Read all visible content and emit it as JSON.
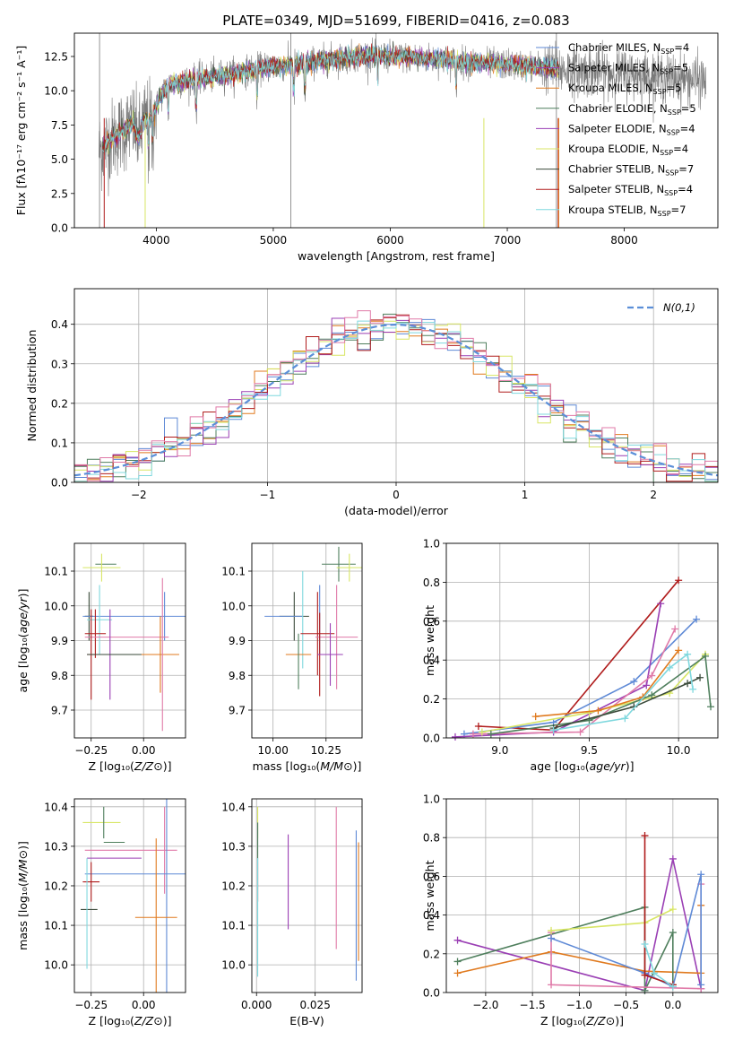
{
  "figure_title": "PLATE=0349, MJD=51699, FIBERID=0416, z=0.083",
  "colors": {
    "Chabrier MILES": "#5f8ad6",
    "Salpeter MILES": "#9a3fb4",
    "Kroupa MILES": "#e07a1f",
    "Chabrier ELODIE": "#4f7f5d",
    "Salpeter ELODIE": "#9a3fb4",
    "Kroupa ELODIE": "#d8e665",
    "Chabrier STELIB": "#3a4a3a",
    "Salpeter STELIB": "#b01c1c",
    "Kroupa STELIB": "#7fd8de",
    "pink": "#e07aa8",
    "gauss": "#5b8fd8",
    "grid": "#b0b0b0",
    "spectrum": "#7a7a7a"
  },
  "chart_data": [
    {
      "id": "spectrum",
      "type": "line",
      "title": "PLATE=0349, MJD=51699, FIBERID=0416, z=0.083",
      "xlabel": "wavelength [Angstrom, rest frame]",
      "ylabel": "Flux [f_λ 10^-17 erg cm^-2 s^-1 A^-1]",
      "xlim": [
        3300,
        8800
      ],
      "ylim": [
        0,
        14.2
      ],
      "xticks": [
        4000,
        5000,
        6000,
        7000,
        8000
      ],
      "yticks": [
        0.0,
        2.5,
        5.0,
        7.5,
        10.0,
        12.5
      ],
      "grid": false,
      "legend_position": "right",
      "continuum": {
        "x": [
          3510,
          3600,
          3700,
          3800,
          3850,
          3900,
          3950,
          4000,
          4050,
          4100,
          4200,
          4300,
          4400,
          4600,
          4800,
          5000,
          5200,
          5400,
          5600,
          5800,
          6000,
          6200,
          6400,
          6600,
          6800,
          7000,
          7200,
          7400,
          7500,
          7700,
          7900,
          8100,
          8300,
          8500,
          8700
        ],
        "y": [
          5.6,
          6.3,
          7.0,
          7.6,
          6.5,
          7.9,
          7.8,
          8.8,
          9.8,
          10.4,
          10.6,
          10.8,
          10.9,
          11.2,
          11.5,
          11.8,
          11.9,
          12.2,
          12.4,
          12.6,
          12.5,
          12.4,
          12.3,
          12.1,
          12.0,
          11.9,
          11.8,
          11.6,
          11.5,
          11.4,
          11.3,
          11.2,
          11.0,
          10.9,
          10.7
        ]
      },
      "series": [
        {
          "name": "Chabrier MILES, N_SSP=4",
          "color_key": "Chabrier MILES"
        },
        {
          "name": "Salpeter MILES, N_SSP=5",
          "color_key": "Salpeter MILES"
        },
        {
          "name": "Kroupa MILES, N_SSP=5",
          "color_key": "Kroupa MILES"
        },
        {
          "name": "Chabrier ELODIE, N_SSP=5",
          "color_key": "Chabrier ELODIE"
        },
        {
          "name": "Salpeter ELODIE, N_SSP=4",
          "color_key": "Salpeter ELODIE"
        },
        {
          "name": "Kroupa ELODIE, N_SSP=4",
          "color_key": "Kroupa ELODIE"
        },
        {
          "name": "Chabrier STELIB, N_SSP=7",
          "color_key": "Chabrier STELIB"
        },
        {
          "name": "Salpeter STELIB, N_SSP=4",
          "color_key": "Salpeter STELIB"
        },
        {
          "name": "Kroupa STELIB, N_SSP=7",
          "color_key": "Kroupa STELIB"
        }
      ]
    },
    {
      "id": "residuals",
      "type": "histogram",
      "xlabel": "(data-model)/error",
      "ylabel": "Normed distribution",
      "xlim": [
        -2.5,
        2.5
      ],
      "ylim": [
        0,
        0.49
      ],
      "xticks": [
        -2,
        -1,
        0,
        1,
        2
      ],
      "yticks": [
        0.0,
        0.1,
        0.2,
        0.3,
        0.4
      ],
      "grid": true,
      "bin_width": 0.1,
      "legend": "N(0,1)",
      "legend_position": "top-right",
      "series_colors": [
        "Chabrier MILES",
        "Kroupa MILES",
        "Chabrier ELODIE",
        "Salpeter ELODIE",
        "Kroupa ELODIE",
        "Salpeter STELIB",
        "Kroupa STELIB",
        "pink"
      ]
    },
    {
      "id": "age_vs_Z",
      "type": "errorbar",
      "xlabel": "Z [log10(Z/Z_sun)]",
      "ylabel": "age [log10(age/yr)]",
      "xlim": [
        -0.33,
        0.2
      ],
      "ylim": [
        9.62,
        10.18
      ],
      "xticks": [
        -0.25,
        0.0
      ],
      "yticks": [
        9.7,
        9.8,
        9.9,
        10.0,
        10.1
      ],
      "grid": true,
      "points": [
        {
          "x": -0.18,
          "xerr": 0.05,
          "y": 10.12,
          "yerr": 0,
          "c": "Chabrier ELODIE"
        },
        {
          "x": -0.2,
          "xerr": 0.09,
          "y": 10.11,
          "yerr": 0.04,
          "c": "Kroupa ELODIE"
        },
        {
          "x": -0.26,
          "xerr": 0.02,
          "y": 9.97,
          "yerr": 0.07,
          "c": "Chabrier STELIB"
        },
        {
          "x": 0.1,
          "xerr": 0.0,
          "y": 9.97,
          "yerr": 0.07,
          "c": "Chabrier MILES"
        },
        {
          "x": -0.03,
          "xerr": 0.26,
          "y": 9.97,
          "yerr": 0,
          "c": "Chabrier MILES"
        },
        {
          "x": -0.21,
          "xerr": 0.06,
          "y": 9.96,
          "yerr": 0.1,
          "c": "Kroupa STELIB"
        },
        {
          "x": -0.23,
          "xerr": 0.05,
          "y": 9.92,
          "yerr": 0.07,
          "c": "Salpeter STELIB"
        },
        {
          "x": -0.08,
          "xerr": 0.2,
          "y": 9.91,
          "yerr": 0,
          "c": "pink"
        },
        {
          "x": -0.25,
          "xerr": 0.02,
          "y": 9.86,
          "yerr": 0.13,
          "c": "Salpeter STELIB"
        },
        {
          "x": -0.16,
          "xerr": 0.11,
          "y": 9.86,
          "yerr": 0.13,
          "c": "Salpeter MILES"
        },
        {
          "x": -0.07,
          "xerr": 0.2,
          "y": 9.86,
          "yerr": 0,
          "c": "Chabrier STELIB"
        },
        {
          "x": 0.08,
          "xerr": 0.09,
          "y": 9.86,
          "yerr": 0.11,
          "c": "Kroupa MILES"
        },
        {
          "x": 0.09,
          "xerr": 0.0,
          "y": 9.86,
          "yerr": 0.22,
          "c": "pink"
        }
      ]
    },
    {
      "id": "age_vs_mass",
      "type": "errorbar",
      "xlabel": "mass [log10(M/M_sun)]",
      "ylabel": "",
      "xlim": [
        9.9,
        10.42
      ],
      "ylim": [
        9.62,
        10.18
      ],
      "xticks": [
        10.0,
        10.25
      ],
      "yticks": [
        9.7,
        9.8,
        9.9,
        10.0,
        10.1
      ],
      "grid": true,
      "points": [
        {
          "x": 10.31,
          "xerr": 0.08,
          "y": 10.12,
          "yerr": 0.05,
          "c": "Chabrier ELODIE"
        },
        {
          "x": 10.36,
          "xerr": 0.06,
          "y": 10.11,
          "yerr": 0.04,
          "c": "Kroupa ELODIE"
        },
        {
          "x": 10.1,
          "xerr": 0.07,
          "y": 9.97,
          "yerr": 0.07,
          "c": "Chabrier STELIB"
        },
        {
          "x": 10.05,
          "xerr": 0.09,
          "y": 9.97,
          "yerr": 0,
          "c": "Chabrier MILES"
        },
        {
          "x": 10.22,
          "xerr": 0.0,
          "y": 9.96,
          "yerr": 0.1,
          "c": "Chabrier MILES"
        },
        {
          "x": 10.14,
          "xerr": 0.0,
          "y": 9.96,
          "yerr": 0.14,
          "c": "Kroupa STELIB"
        },
        {
          "x": 10.21,
          "xerr": 0.08,
          "y": 9.92,
          "yerr": 0.12,
          "c": "Salpeter STELIB"
        },
        {
          "x": 10.3,
          "xerr": 0.1,
          "y": 9.91,
          "yerr": 0.15,
          "c": "pink"
        },
        {
          "x": 10.22,
          "xerr": 0.0,
          "y": 9.86,
          "yerr": 0.12,
          "c": "Salpeter STELIB"
        },
        {
          "x": 10.27,
          "xerr": 0.06,
          "y": 9.86,
          "yerr": 0.09,
          "c": "Salpeter MILES"
        },
        {
          "x": 10.12,
          "xerr": 0.06,
          "y": 9.86,
          "yerr": 0,
          "c": "Kroupa MILES"
        },
        {
          "x": 10.12,
          "xerr": 0.0,
          "y": 9.84,
          "yerr": 0.08,
          "c": "Chabrier ELODIE"
        }
      ]
    },
    {
      "id": "weight_vs_age",
      "type": "line",
      "xlabel": "age [log10(age/yr)]",
      "ylabel": "mass weight",
      "xlim": [
        8.7,
        10.22
      ],
      "ylim": [
        0,
        1
      ],
      "xticks": [
        9.0,
        9.5,
        10.0
      ],
      "yticks": [
        0.0,
        0.2,
        0.4,
        0.6,
        0.8,
        1.0
      ],
      "grid": true,
      "series": [
        {
          "c": "Salpeter STELIB",
          "x": [
            8.88,
            9.3,
            10.0
          ],
          "y": [
            0.06,
            0.04,
            0.81
          ]
        },
        {
          "c": "Chabrier MILES",
          "x": [
            8.8,
            9.3,
            9.75,
            10.1
          ],
          "y": [
            0.02,
            0.08,
            0.29,
            0.61
          ]
        },
        {
          "c": "Salpeter ELODIE",
          "x": [
            8.75,
            9.3,
            9.82,
            9.9
          ],
          "y": [
            0.005,
            0.03,
            0.27,
            0.69
          ]
        },
        {
          "c": "pink",
          "x": [
            8.85,
            9.45,
            9.85,
            9.98
          ],
          "y": [
            0.02,
            0.03,
            0.32,
            0.56
          ]
        },
        {
          "c": "Kroupa ELODIE",
          "x": [
            8.9,
            9.5,
            9.95,
            10.15
          ],
          "y": [
            0.03,
            0.13,
            0.23,
            0.43
          ]
        },
        {
          "c": "Kroupa MILES",
          "x": [
            9.2,
            9.55,
            9.8,
            10.0
          ],
          "y": [
            0.11,
            0.14,
            0.21,
            0.45
          ]
        },
        {
          "c": "Chabrier ELODIE",
          "x": [
            8.95,
            9.5,
            9.85,
            10.15,
            10.18
          ],
          "y": [
            0.02,
            0.09,
            0.22,
            0.42,
            0.16
          ]
        },
        {
          "c": "Chabrier STELIB",
          "x": [
            9.3,
            9.75,
            10.05,
            10.12
          ],
          "y": [
            0.05,
            0.16,
            0.28,
            0.31
          ]
        },
        {
          "c": "Kroupa STELIB",
          "x": [
            9.3,
            9.7,
            9.95,
            10.05,
            10.08
          ],
          "y": [
            0.04,
            0.1,
            0.36,
            0.43,
            0.25
          ]
        }
      ]
    },
    {
      "id": "mass_vs_Z",
      "type": "errorbar",
      "xlabel": "Z [log10(Z/Z_sun)]",
      "ylabel": "mass [log10(M/M_sun)]",
      "xlim": [
        -0.33,
        0.2
      ],
      "ylim": [
        9.93,
        10.42
      ],
      "xticks": [
        -0.25,
        0.0
      ],
      "yticks": [
        10.0,
        10.1,
        10.2,
        10.3,
        10.4
      ],
      "grid": true,
      "points": [
        {
          "x": -0.2,
          "xerr": 0.09,
          "y": 10.36,
          "yerr": 0,
          "c": "Kroupa ELODIE"
        },
        {
          "x": -0.19,
          "xerr": 0.0,
          "y": 10.36,
          "yerr": 0.04,
          "c": "Chabrier ELODIE"
        },
        {
          "x": -0.14,
          "xerr": 0.05,
          "y": 10.31,
          "yerr": 0,
          "c": "Chabrier ELODIE"
        },
        {
          "x": -0.06,
          "xerr": 0.22,
          "y": 10.29,
          "yerr": 0,
          "c": "pink"
        },
        {
          "x": 0.1,
          "xerr": 0.0,
          "y": 10.29,
          "yerr": 0.11,
          "c": "pink"
        },
        {
          "x": -0.14,
          "xerr": 0.13,
          "y": 10.27,
          "yerr": 0,
          "c": "Salpeter MILES"
        },
        {
          "x": -0.04,
          "xerr": 0.24,
          "y": 10.23,
          "yerr": 0,
          "c": "Chabrier MILES"
        },
        {
          "x": 0.11,
          "xerr": 0.0,
          "y": 10.23,
          "yerr": 0.3,
          "c": "Chabrier MILES"
        },
        {
          "x": -0.25,
          "xerr": 0.04,
          "y": 10.21,
          "yerr": 0.05,
          "c": "Salpeter STELIB"
        },
        {
          "x": -0.26,
          "xerr": 0.04,
          "y": 10.14,
          "yerr": 0,
          "c": "Chabrier STELIB"
        },
        {
          "x": -0.27,
          "xerr": 0.0,
          "y": 10.13,
          "yerr": 0.14,
          "c": "Kroupa STELIB"
        },
        {
          "x": 0.06,
          "xerr": 0.1,
          "y": 10.12,
          "yerr": 0.2,
          "c": "Kroupa MILES"
        }
      ]
    },
    {
      "id": "mass_vs_ebv",
      "type": "errorbar",
      "xlabel": "E(B-V)",
      "ylabel": "",
      "xlim": [
        -0.002,
        0.045
      ],
      "ylim": [
        9.93,
        10.42
      ],
      "xticks": [
        0.0,
        0.025
      ],
      "xticklabels": [
        "0.000",
        "0.025"
      ],
      "yticks": [
        10.0,
        10.1,
        10.2,
        10.3,
        10.4
      ],
      "grid": true,
      "points": [
        {
          "x": 0.0005,
          "y": 10.36,
          "yerr": 0.04,
          "c": "Kroupa ELODIE"
        },
        {
          "x": 0.0005,
          "y": 10.31,
          "yerr": 0.05,
          "c": "Chabrier ELODIE"
        },
        {
          "x": 0.0005,
          "y": 10.21,
          "yerr": 0.05,
          "c": "Salpeter STELIB"
        },
        {
          "x": 0.0005,
          "y": 10.12,
          "yerr": 0.15,
          "c": "Kroupa STELIB"
        },
        {
          "x": 0.0135,
          "y": 10.21,
          "yerr": 0.12,
          "c": "Salpeter MILES"
        },
        {
          "x": 0.034,
          "y": 10.22,
          "yerr": 0.18,
          "c": "pink"
        },
        {
          "x": 0.0425,
          "y": 10.15,
          "yerr": 0.19,
          "c": "Chabrier MILES"
        },
        {
          "x": 0.0435,
          "y": 10.16,
          "yerr": 0.15,
          "c": "Kroupa MILES"
        }
      ]
    },
    {
      "id": "weight_vs_Z",
      "type": "line",
      "xlabel": "Z [log10(Z/Z_sun)]",
      "ylabel": "mass weight",
      "xlim": [
        -2.42,
        0.48
      ],
      "ylim": [
        0,
        1
      ],
      "xticks": [
        -2.0,
        -1.5,
        -1.0,
        -0.5,
        0.0
      ],
      "yticks": [
        0.0,
        0.2,
        0.4,
        0.6,
        0.8,
        1.0
      ],
      "grid": true,
      "series": [
        {
          "c": "Salpeter MILES",
          "x": [
            -2.3,
            -0.3,
            0.0,
            0.3
          ],
          "y": [
            0.27,
            0.01,
            0.69,
            0.02
          ]
        },
        {
          "c": "Kroupa MILES",
          "x": [
            -2.3,
            -1.3,
            -0.3,
            0.3,
            0.3
          ],
          "y": [
            0.1,
            0.21,
            0.11,
            0.1,
            0.45
          ]
        },
        {
          "c": "Chabrier ELODIE",
          "x": [
            -2.3,
            -0.3,
            -0.3,
            0.0,
            0.0
          ],
          "y": [
            0.16,
            0.44,
            0.01,
            0.31,
            0.04
          ]
        },
        {
          "c": "pink",
          "x": [
            -1.3,
            -1.3,
            0.3,
            0.3
          ],
          "y": [
            0.31,
            0.04,
            0.02,
            0.56
          ]
        },
        {
          "c": "Chabrier MILES",
          "x": [
            -1.3,
            -0.3,
            0.0,
            0.3,
            0.3
          ],
          "y": [
            0.28,
            0.1,
            0.03,
            0.61,
            0.04
          ]
        },
        {
          "c": "Kroupa ELODIE",
          "x": [
            -1.3,
            -0.3,
            0.0
          ],
          "y": [
            0.32,
            0.36,
            0.43
          ]
        },
        {
          "c": "Salpeter STELIB",
          "x": [
            -0.3,
            -0.3,
            0.0
          ],
          "y": [
            0.81,
            0.09,
            0.04
          ]
        },
        {
          "c": "Kroupa STELIB",
          "x": [
            -0.3,
            -0.2,
            0.0
          ],
          "y": [
            0.25,
            0.1,
            0.03
          ]
        }
      ]
    }
  ]
}
